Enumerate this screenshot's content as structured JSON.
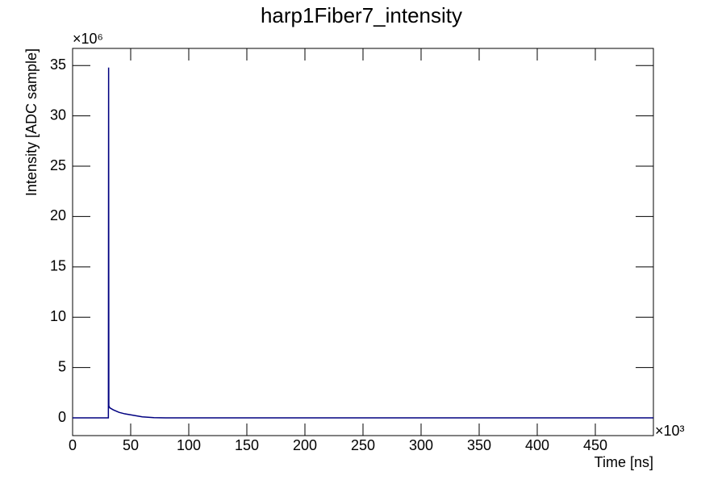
{
  "chart_data": {
    "type": "line",
    "title": "harp1Fiber7_intensity",
    "x_label": "Time [ns]",
    "y_label": "Intensity [ADC sample]",
    "x_multiplier": "×10³",
    "y_multiplier": "×10⁶",
    "x": [
      0,
      30,
      30.8,
      31,
      31.2,
      32,
      35,
      40,
      45,
      50,
      55,
      60,
      70,
      80,
      150,
      500
    ],
    "series": [
      {
        "name": "harp1Fiber7_intensity",
        "color": "#000080",
        "values": [
          0,
          0,
          0,
          34.8,
          1.2,
          1.0,
          0.8,
          0.55,
          0.4,
          0.3,
          0.2,
          0.1,
          0.02,
          0,
          0,
          0
        ]
      }
    ],
    "xlim": [
      0,
      500
    ],
    "ylim": [
      -1.76,
      36.7
    ],
    "xticks": [
      0,
      50,
      100,
      150,
      200,
      250,
      300,
      350,
      400,
      450
    ],
    "yticks": [
      0,
      5,
      10,
      15,
      20,
      25,
      30,
      35
    ],
    "grid": false
  }
}
